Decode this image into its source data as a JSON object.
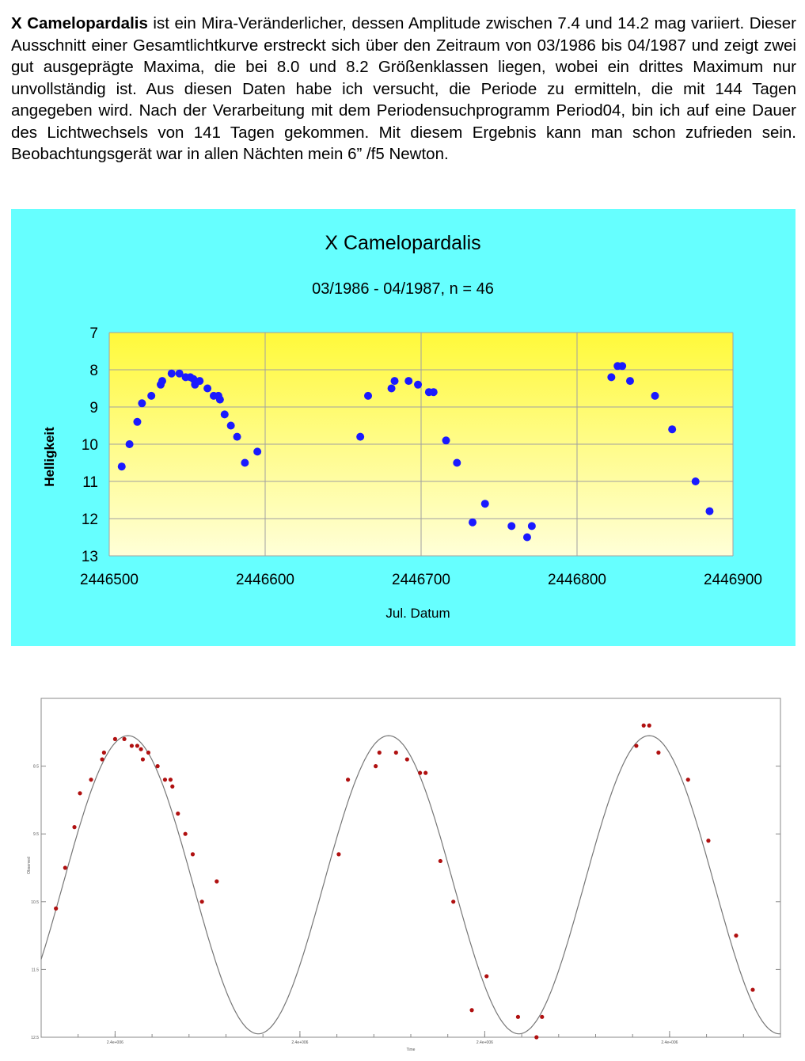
{
  "intro": {
    "star_name": "X Camelopardalis",
    "text": " ist ein Mira-Veränderlicher, dessen Amplitude zwischen 7.4 und 14.2 mag variiert. Dieser Ausschnitt einer Gesamtlichtkurve erstreckt sich über den Zeitraum von 03/1986 bis 04/1987 und zeigt zwei gut ausgeprägte Maxima, die bei 8.0 und 8.2 Größenklassen liegen, wobei ein drittes Maximum nur unvollständig ist. Aus diesen Daten habe ich versucht, die Periode zu ermitteln,  die mit 144 Tagen angegeben wird. Nach der Verarbeitung mit dem Periodensuchprogramm Period04, bin ich auf eine Dauer des Lichtwechsels von 141 Tagen gekommen. Mit diesem Ergebnis kann man schon zufrieden sein. Beobachtungsgerät war in allen Nächten mein 6” /f5 Newton."
  },
  "colors": {
    "panel_bg": "#66ffff",
    "plot_top": "#fff93a",
    "plot_bottom": "#ffffd8",
    "points": "#1a1aff",
    "points2": "#b01010",
    "fit_curve": "#777777",
    "grid": "#a0a0a0"
  },
  "chart_data": [
    {
      "type": "scatter",
      "title": "X Camelopardalis",
      "subtitle": "03/1986 - 04/1987, n = 46",
      "xlabel": "Jul. Datum",
      "ylabel": "Helligkeit",
      "xlim": [
        2446500,
        2446900
      ],
      "ylim": [
        7,
        13
      ],
      "y_inverted": true,
      "grid": true,
      "xticks": [
        "2446500",
        "2446600",
        "2446700",
        "2446800",
        "2446900"
      ],
      "yticks": [
        "7",
        "8",
        "9",
        "10",
        "11",
        "12",
        "13"
      ],
      "x": [
        2446508,
        2446513,
        2446518,
        2446521,
        2446527,
        2446533,
        2446534,
        2446540,
        2446545,
        2446549,
        2446552,
        2446554,
        2446555,
        2446558,
        2446563,
        2446567,
        2446570,
        2446571,
        2446574,
        2446578,
        2446582,
        2446587,
        2446595,
        2446661,
        2446666,
        2446681,
        2446683,
        2446692,
        2446698,
        2446705,
        2446708,
        2446716,
        2446723,
        2446733,
        2446741,
        2446758,
        2446768,
        2446771,
        2446822,
        2446826,
        2446829,
        2446834,
        2446850,
        2446861,
        2446876,
        2446885
      ],
      "y": [
        10.6,
        10.0,
        9.4,
        8.9,
        8.7,
        8.4,
        8.3,
        8.1,
        8.1,
        8.2,
        8.2,
        8.25,
        8.4,
        8.3,
        8.5,
        8.7,
        8.7,
        8.8,
        9.2,
        9.5,
        9.8,
        10.5,
        10.2,
        9.8,
        8.7,
        8.5,
        8.3,
        8.3,
        8.4,
        8.6,
        8.6,
        9.9,
        10.5,
        12.1,
        11.6,
        12.2,
        12.5,
        12.2,
        8.2,
        7.9,
        7.9,
        8.3,
        8.7,
        9.6,
        11.0,
        11.8
      ]
    },
    {
      "type": "scatter",
      "description_of_fit": "sinusoidal",
      "xlabel": "Time",
      "ylabel": "Observed",
      "y_inverted": true,
      "yticks": [
        "8.5",
        "9.5",
        "10.5",
        "11.5",
        "12.5"
      ],
      "xticks": [
        "2.4e+006",
        "2.4e+006",
        "2.4e+006",
        "2.4e+006"
      ],
      "xlim": [
        2446500,
        2446900
      ],
      "ylim": [
        7.5,
        12.5
      ],
      "x": [
        2446508,
        2446513,
        2446518,
        2446521,
        2446527,
        2446533,
        2446534,
        2446540,
        2446545,
        2446549,
        2446552,
        2446554,
        2446555,
        2446558,
        2446563,
        2446567,
        2446570,
        2446571,
        2446574,
        2446578,
        2446582,
        2446587,
        2446595,
        2446661,
        2446666,
        2446681,
        2446683,
        2446692,
        2446698,
        2446705,
        2446708,
        2446716,
        2446723,
        2446733,
        2446741,
        2446758,
        2446768,
        2446771,
        2446822,
        2446826,
        2446829,
        2446834,
        2446850,
        2446861,
        2446876,
        2446885
      ],
      "y": [
        10.6,
        10.0,
        9.4,
        8.9,
        8.7,
        8.4,
        8.3,
        8.1,
        8.1,
        8.2,
        8.2,
        8.25,
        8.4,
        8.3,
        8.5,
        8.7,
        8.7,
        8.8,
        9.2,
        9.5,
        9.8,
        10.5,
        10.2,
        9.8,
        8.7,
        8.5,
        8.3,
        8.3,
        8.4,
        8.6,
        8.6,
        9.9,
        10.5,
        12.1,
        11.6,
        12.2,
        12.5,
        12.2,
        8.2,
        7.9,
        7.9,
        8.3,
        8.7,
        9.6,
        11.0,
        11.8
      ],
      "fit": {
        "period_days": 141,
        "max_mag": 8.05,
        "min_mag": 12.45,
        "phase_max_jd": 2446547
      }
    }
  ]
}
